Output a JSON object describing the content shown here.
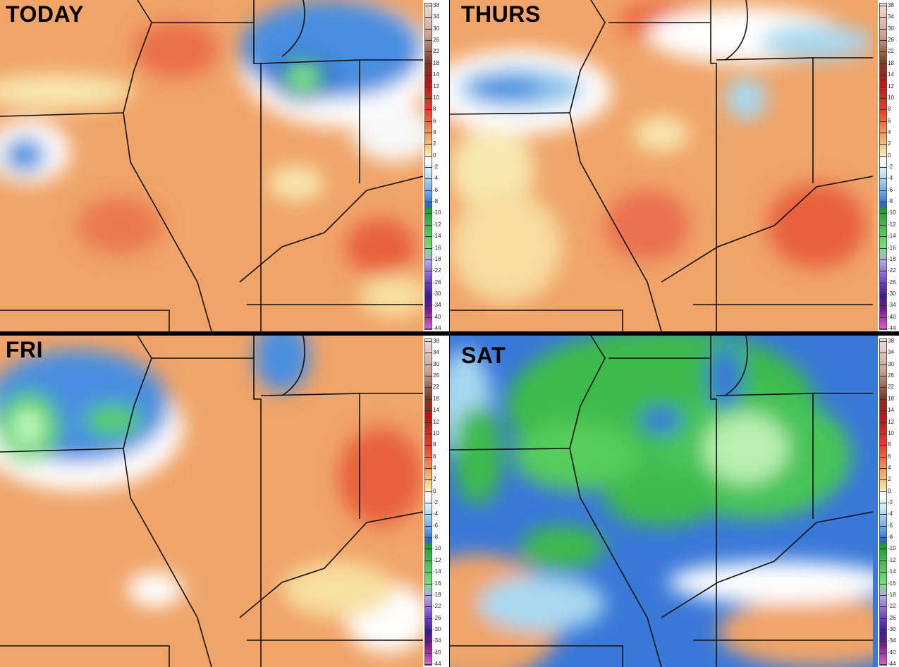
{
  "panels": [
    {
      "title": "TODAY"
    },
    {
      "title": "THURS"
    },
    {
      "title": "FRI"
    },
    {
      "title": "SAT"
    }
  ],
  "colorbar": {
    "labels": [
      38,
      34,
      30,
      26,
      22,
      18,
      14,
      12,
      10,
      8,
      6,
      4,
      2,
      0,
      -2,
      -4,
      -6,
      -8,
      -10,
      -12,
      -14,
      -16,
      -18,
      -22,
      -26,
      -30,
      -34,
      -40,
      -44
    ]
  }
}
